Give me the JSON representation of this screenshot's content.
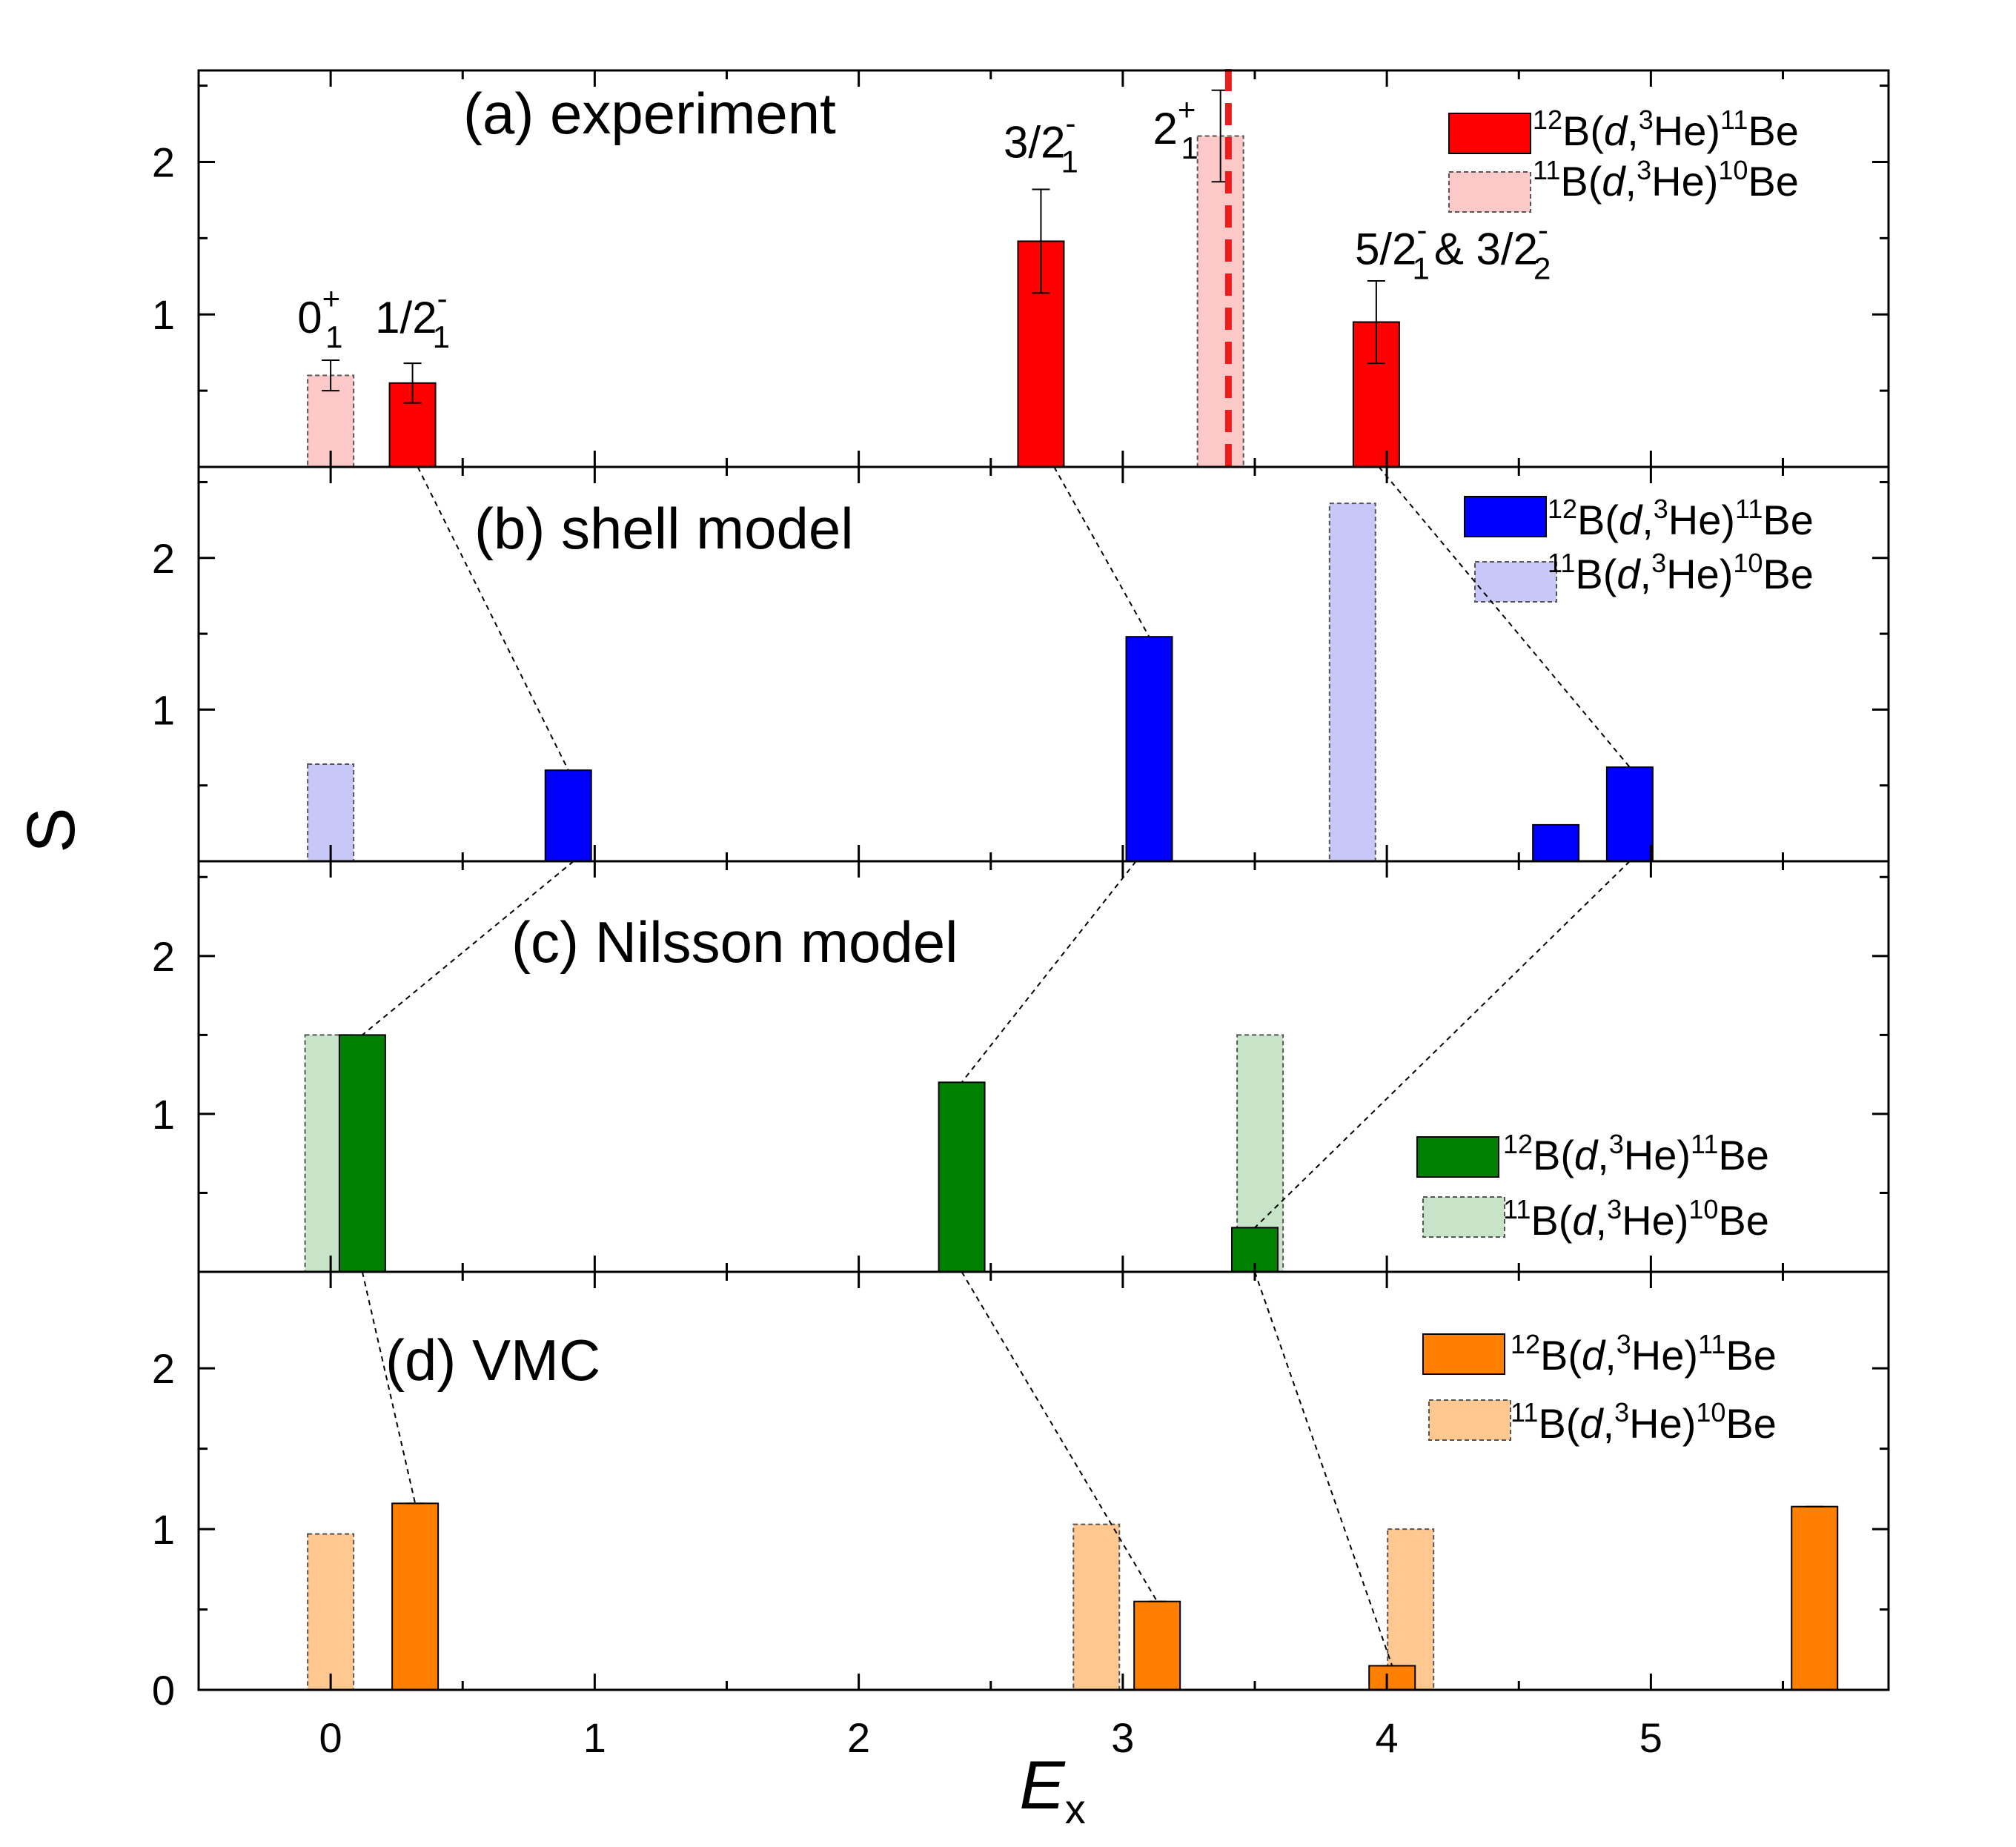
{
  "chart_data": {
    "type": "bar",
    "xlabel": "E",
    "xlabel_sub": "x",
    "ylabel": "S",
    "xlim": [
      -0.5,
      5.9
    ],
    "ylim": [
      0,
      2.6
    ],
    "x_ticks": [
      "0",
      "1",
      "2",
      "3",
      "4",
      "5"
    ],
    "y_ticks_bottom": [
      "0",
      "1",
      "2"
    ],
    "y_ticks": [
      "1",
      "2"
    ],
    "legend_parts": {
      "a": {
        "pre": "12",
        "mid": "B(",
        "ital": "d",
        "comma": ",",
        "sup": "3",
        "post": "He)",
        "sup2": "11",
        "end": "Be"
      },
      "b": {
        "pre": "11",
        "mid": "B(",
        "ital": "d",
        "comma": ",",
        "sup": "3",
        "post": "He)",
        "sup2": "10",
        "end": "Be"
      }
    },
    "panels": [
      {
        "id": "a",
        "title": "(a) experiment",
        "color": "#ff0000",
        "light_color": "#fcc8c8",
        "series": [
          {
            "name": "12B(d,3He)11Be",
            "points": [
              {
                "x": 0.31,
                "y": 0.55,
                "err": 0.13
              },
              {
                "x": 2.69,
                "y": 1.48,
                "err": 0.34
              },
              {
                "x": 3.96,
                "y": 0.95,
                "err": 0.27
              }
            ]
          },
          {
            "name": "11B(d,3He)10Be",
            "points": [
              {
                "x": 0.0,
                "y": 0.6,
                "err": 0.1
              },
              {
                "x": 3.37,
                "y": 2.17,
                "err": 0.3
              }
            ]
          }
        ],
        "state_labels": [
          {
            "x": -0.04,
            "y": 0.88,
            "main": "0",
            "sup": "+",
            "sub": "1"
          },
          {
            "x": 0.31,
            "y": 0.88,
            "main": "1/2",
            "sup": "-",
            "sub": "1"
          },
          {
            "x": 2.69,
            "y": 2.03,
            "main": "3/2",
            "sup": "-",
            "sub": "1"
          },
          {
            "x": 3.2,
            "y": 2.12,
            "main": "2",
            "sup": "+",
            "sub": "1"
          },
          {
            "x": 4.25,
            "y": 1.33,
            "main": "5/2",
            "sup": "-",
            "sub": "1",
            "main2": "& 3/2",
            "sup2": "-",
            "sub2": "2"
          }
        ],
        "vline_x": 3.4
      },
      {
        "id": "b",
        "title": "(b) shell model",
        "color": "#0000ff",
        "light_color": "#c8c8f8",
        "series": [
          {
            "name": "12B(d,3He)11Be",
            "points": [
              {
                "x": 0.9,
                "y": 0.6
              },
              {
                "x": 3.1,
                "y": 1.48
              },
              {
                "x": 4.64,
                "y": 0.24
              },
              {
                "x": 4.92,
                "y": 0.62
              }
            ]
          },
          {
            "name": "11B(d,3He)10Be",
            "points": [
              {
                "x": 0.0,
                "y": 0.64
              },
              {
                "x": 3.87,
                "y": 2.36
              }
            ]
          }
        ]
      },
      {
        "id": "c",
        "title": "(c) Nilsson model",
        "color": "#008000",
        "light_color": "#c8e4c8",
        "series": [
          {
            "name": "12B(d,3He)11Be",
            "points": [
              {
                "x": 0.12,
                "y": 1.5
              },
              {
                "x": 2.39,
                "y": 1.2
              },
              {
                "x": 3.5,
                "y": 0.28
              }
            ]
          },
          {
            "name": "11B(d,3He)10Be",
            "points": [
              {
                "x": -0.01,
                "y": 1.5
              },
              {
                "x": 3.52,
                "y": 1.5
              }
            ]
          }
        ]
      },
      {
        "id": "d",
        "title": "(d) VMC",
        "color": "#ff8000",
        "light_color": "#ffc890",
        "series": [
          {
            "name": "12B(d,3He)11Be",
            "points": [
              {
                "x": 0.32,
                "y": 1.16
              },
              {
                "x": 3.13,
                "y": 0.55
              },
              {
                "x": 4.02,
                "y": 0.15
              },
              {
                "x": 5.62,
                "y": 1.14
              }
            ]
          },
          {
            "name": "11B(d,3He)10Be",
            "points": [
              {
                "x": 0.0,
                "y": 0.97
              },
              {
                "x": 2.9,
                "y": 1.03
              },
              {
                "x": 4.09,
                "y": 1.0
              }
            ]
          }
        ]
      }
    ],
    "connectors": [
      {
        "from": [
          0,
          0.33,
          0
        ],
        "to": [
          1,
          0.9,
          0.6
        ]
      },
      {
        "from": [
          0,
          2.74,
          0
        ],
        "to": [
          1,
          3.1,
          1.48
        ]
      },
      {
        "from": [
          0,
          3.97,
          0
        ],
        "to": [
          1,
          4.92,
          0.62
        ]
      },
      {
        "from": [
          1,
          0.92,
          0
        ],
        "to": [
          2,
          0.12,
          1.5
        ]
      },
      {
        "from": [
          1,
          3.05,
          0
        ],
        "to": [
          2,
          2.39,
          1.2
        ]
      },
      {
        "from": [
          1,
          4.92,
          0
        ],
        "to": [
          2,
          3.5,
          0.28
        ]
      },
      {
        "from": [
          2,
          0.12,
          0
        ],
        "to": [
          3,
          0.32,
          1.16
        ]
      },
      {
        "from": [
          2,
          2.39,
          0
        ],
        "to": [
          3,
          3.13,
          0.55
        ]
      },
      {
        "from": [
          2,
          3.5,
          0
        ],
        "to": [
          3,
          4.02,
          0.15
        ]
      }
    ]
  }
}
